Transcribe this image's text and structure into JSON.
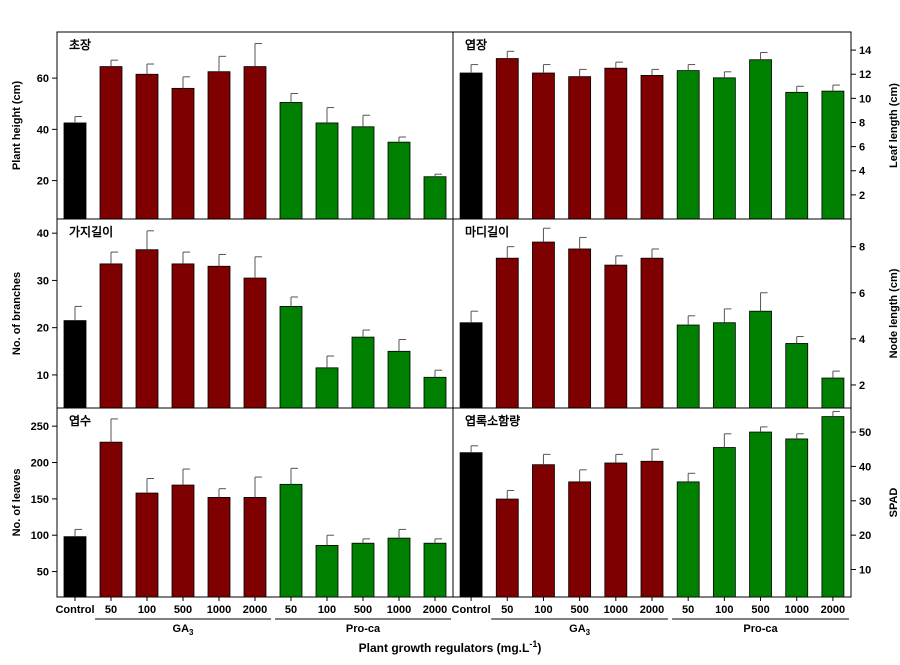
{
  "figure": {
    "xlabel": "Plant growth regulators (mg.L",
    "xlabel_exp": "-1",
    "xlabel_end": ")",
    "categories": [
      "Control",
      "50",
      "100",
      "500",
      "1000",
      "2000",
      "50",
      "100",
      "500",
      "1000",
      "2000"
    ],
    "groups": [
      {
        "label": "GA",
        "sub": "3"
      },
      {
        "label": "Pro-ca",
        "sub": ""
      }
    ],
    "colors": {
      "control": "#000000",
      "ga3": "#7f0000",
      "proca": "#008000"
    }
  },
  "chart_data": [
    {
      "type": "bar",
      "title": "초장",
      "ylabel": "Plant height (cm)",
      "axis_side": "left",
      "ylim": [
        5,
        78
      ],
      "yticks": [
        20,
        40,
        60
      ],
      "values": [
        42.5,
        64.5,
        61.5,
        56,
        62.5,
        64.5,
        50.5,
        42.5,
        41,
        35,
        21.5
      ],
      "errors": [
        2.5,
        2.5,
        4,
        4.5,
        6,
        9,
        3.5,
        6,
        4.5,
        2,
        1
      ]
    },
    {
      "type": "bar",
      "title": "엽장",
      "ylabel": "Leaf length (cm)",
      "axis_side": "right",
      "ylim": [
        0,
        15.5
      ],
      "yticks": [
        2,
        4,
        6,
        8,
        10,
        12,
        14
      ],
      "values": [
        12.1,
        13.3,
        12.1,
        11.8,
        12.5,
        11.9,
        12.3,
        11.7,
        13.2,
        10.5,
        10.6
      ],
      "errors": [
        0.7,
        0.6,
        0.7,
        0.6,
        0.5,
        0.5,
        0.5,
        0.5,
        0.6,
        0.5,
        0.5
      ]
    },
    {
      "type": "bar",
      "title": "가지길이",
      "ylabel": "No. of branches",
      "axis_side": "left",
      "ylim": [
        3,
        43
      ],
      "yticks": [
        10,
        20,
        30,
        40
      ],
      "values": [
        21.5,
        33.5,
        36.5,
        33.5,
        33,
        30.5,
        24.5,
        11.5,
        18,
        15,
        9.5
      ],
      "errors": [
        3,
        2.5,
        4,
        2.5,
        2.5,
        4.5,
        2,
        2.5,
        1.5,
        2.5,
        1.5
      ]
    },
    {
      "type": "bar",
      "title": "마디길이",
      "ylabel": "Node length (cm)",
      "axis_side": "right",
      "ylim": [
        1,
        9.2
      ],
      "yticks": [
        2,
        4,
        6,
        8
      ],
      "values": [
        4.7,
        7.5,
        8.2,
        7.9,
        7.2,
        7.5,
        4.6,
        4.7,
        5.2,
        3.8,
        2.3
      ],
      "errors": [
        0.5,
        0.5,
        0.6,
        0.5,
        0.4,
        0.4,
        0.4,
        0.6,
        0.8,
        0.3,
        0.3
      ]
    },
    {
      "type": "bar",
      "title": "엽수",
      "ylabel": "No. of leaves",
      "axis_side": "left",
      "ylim": [
        15,
        275
      ],
      "yticks": [
        50,
        100,
        150,
        200,
        250
      ],
      "values": [
        98,
        228,
        158,
        169,
        152,
        152,
        170,
        86,
        89,
        96,
        89
      ],
      "errors": [
        10,
        32,
        20,
        22,
        12,
        28,
        22,
        14,
        6,
        12,
        6
      ]
    },
    {
      "type": "bar",
      "title": "엽록소함량",
      "ylabel": "SPAD",
      "axis_side": "right",
      "ylim": [
        2,
        57
      ],
      "yticks": [
        10,
        20,
        30,
        40,
        50
      ],
      "values": [
        44,
        30.5,
        40.5,
        35.5,
        41,
        41.5,
        35.5,
        45.5,
        50,
        48,
        54.5
      ],
      "errors": [
        2,
        2.5,
        3,
        3.5,
        2.5,
        3.5,
        2.5,
        4,
        1.5,
        1.5,
        1.5
      ]
    }
  ]
}
